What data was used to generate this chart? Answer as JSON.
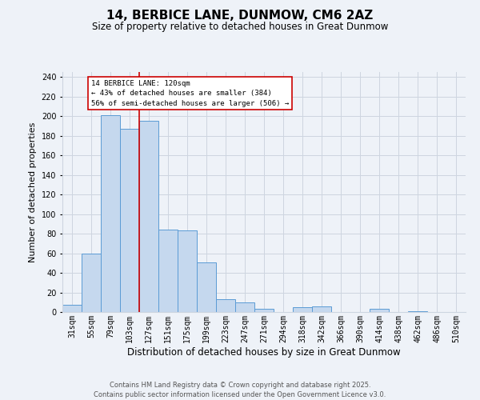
{
  "title": "14, BERBICE LANE, DUNMOW, CM6 2AZ",
  "subtitle": "Size of property relative to detached houses in Great Dunmow",
  "xlabel": "Distribution of detached houses by size in Great Dunmow",
  "ylabel": "Number of detached properties",
  "categories": [
    "31sqm",
    "55sqm",
    "79sqm",
    "103sqm",
    "127sqm",
    "151sqm",
    "175sqm",
    "199sqm",
    "223sqm",
    "247sqm",
    "271sqm",
    "294sqm",
    "318sqm",
    "342sqm",
    "366sqm",
    "390sqm",
    "414sqm",
    "438sqm",
    "462sqm",
    "486sqm",
    "510sqm"
  ],
  "values": [
    7,
    60,
    201,
    187,
    195,
    84,
    83,
    51,
    13,
    10,
    3,
    0,
    5,
    6,
    0,
    0,
    3,
    0,
    1,
    0,
    0
  ],
  "bar_color": "#c5d8ee",
  "bar_edge_color": "#5b9bd5",
  "vline_color": "#cc0000",
  "annotation_title": "14 BERBICE LANE: 120sqm",
  "annotation_line1": "← 43% of detached houses are smaller (384)",
  "annotation_line2": "56% of semi-detached houses are larger (506) →",
  "annotation_box_color": "#ffffff",
  "annotation_box_edge": "#cc0000",
  "ylim": [
    0,
    245
  ],
  "yticks": [
    0,
    20,
    40,
    60,
    80,
    100,
    120,
    140,
    160,
    180,
    200,
    220,
    240
  ],
  "footer1": "Contains HM Land Registry data © Crown copyright and database right 2025.",
  "footer2": "Contains public sector information licensed under the Open Government Licence v3.0.",
  "background_color": "#eef2f8",
  "grid_color": "#cdd5e0",
  "title_fontsize": 11,
  "subtitle_fontsize": 8.5,
  "xlabel_fontsize": 8.5,
  "ylabel_fontsize": 8,
  "tick_fontsize": 7,
  "footer_fontsize": 6
}
